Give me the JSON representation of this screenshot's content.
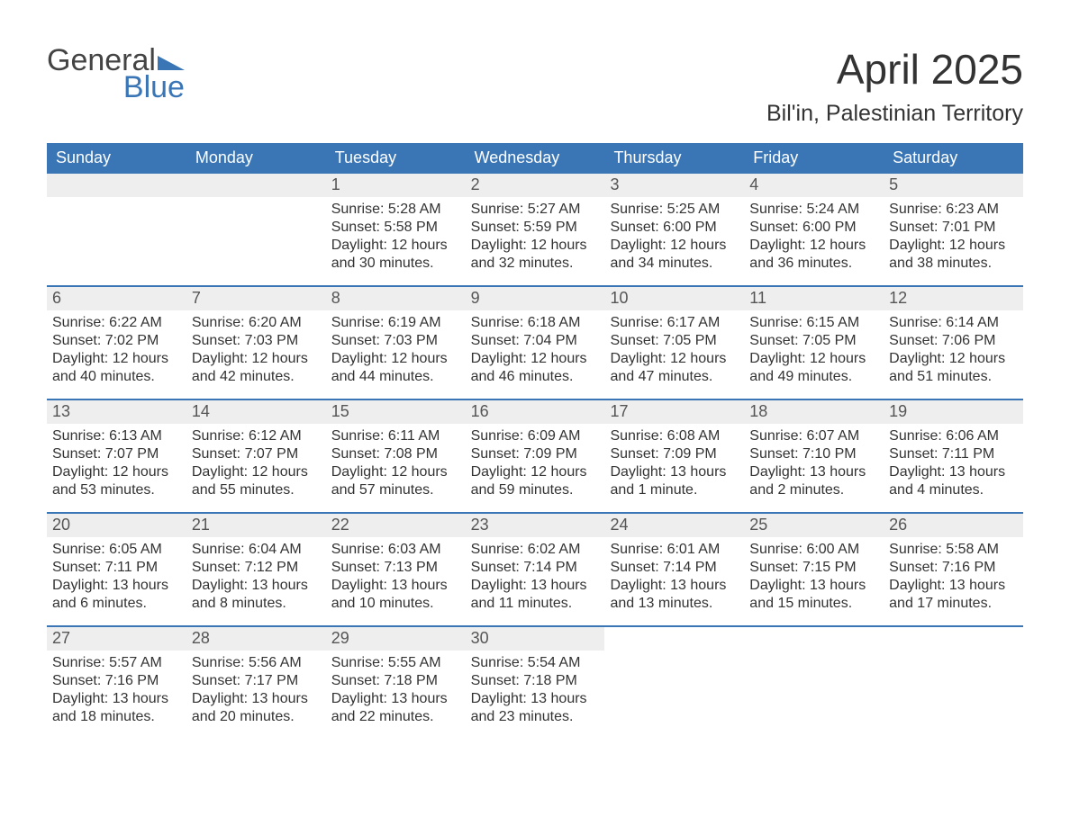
{
  "logo": {
    "word1": "General",
    "word2": "Blue",
    "brand_color": "#3a76b6"
  },
  "title": "April 2025",
  "subtitle": "Bil'in, Palestinian Territory",
  "colors": {
    "header_bg": "#3a76b6",
    "header_text": "#ffffff",
    "daynum_bg": "#eeeeee",
    "daynum_text": "#555555",
    "body_text": "#333333",
    "week_border": "#3a76b6",
    "page_bg": "#ffffff"
  },
  "day_headers": [
    "Sunday",
    "Monday",
    "Tuesday",
    "Wednesday",
    "Thursday",
    "Friday",
    "Saturday"
  ],
  "labels": {
    "sunrise": "Sunrise:",
    "sunset": "Sunset:",
    "daylight": "Daylight:"
  },
  "weeks": [
    [
      {
        "blank": true
      },
      {
        "blank": true
      },
      {
        "n": "1",
        "sunrise": "5:28 AM",
        "sunset": "5:58 PM",
        "daylight": "12 hours and 30 minutes."
      },
      {
        "n": "2",
        "sunrise": "5:27 AM",
        "sunset": "5:59 PM",
        "daylight": "12 hours and 32 minutes."
      },
      {
        "n": "3",
        "sunrise": "5:25 AM",
        "sunset": "6:00 PM",
        "daylight": "12 hours and 34 minutes."
      },
      {
        "n": "4",
        "sunrise": "5:24 AM",
        "sunset": "6:00 PM",
        "daylight": "12 hours and 36 minutes."
      },
      {
        "n": "5",
        "sunrise": "6:23 AM",
        "sunset": "7:01 PM",
        "daylight": "12 hours and 38 minutes."
      }
    ],
    [
      {
        "n": "6",
        "sunrise": "6:22 AM",
        "sunset": "7:02 PM",
        "daylight": "12 hours and 40 minutes."
      },
      {
        "n": "7",
        "sunrise": "6:20 AM",
        "sunset": "7:03 PM",
        "daylight": "12 hours and 42 minutes."
      },
      {
        "n": "8",
        "sunrise": "6:19 AM",
        "sunset": "7:03 PM",
        "daylight": "12 hours and 44 minutes."
      },
      {
        "n": "9",
        "sunrise": "6:18 AM",
        "sunset": "7:04 PM",
        "daylight": "12 hours and 46 minutes."
      },
      {
        "n": "10",
        "sunrise": "6:17 AM",
        "sunset": "7:05 PM",
        "daylight": "12 hours and 47 minutes."
      },
      {
        "n": "11",
        "sunrise": "6:15 AM",
        "sunset": "7:05 PM",
        "daylight": "12 hours and 49 minutes."
      },
      {
        "n": "12",
        "sunrise": "6:14 AM",
        "sunset": "7:06 PM",
        "daylight": "12 hours and 51 minutes."
      }
    ],
    [
      {
        "n": "13",
        "sunrise": "6:13 AM",
        "sunset": "7:07 PM",
        "daylight": "12 hours and 53 minutes."
      },
      {
        "n": "14",
        "sunrise": "6:12 AM",
        "sunset": "7:07 PM",
        "daylight": "12 hours and 55 minutes."
      },
      {
        "n": "15",
        "sunrise": "6:11 AM",
        "sunset": "7:08 PM",
        "daylight": "12 hours and 57 minutes."
      },
      {
        "n": "16",
        "sunrise": "6:09 AM",
        "sunset": "7:09 PM",
        "daylight": "12 hours and 59 minutes."
      },
      {
        "n": "17",
        "sunrise": "6:08 AM",
        "sunset": "7:09 PM",
        "daylight": "13 hours and 1 minute."
      },
      {
        "n": "18",
        "sunrise": "6:07 AM",
        "sunset": "7:10 PM",
        "daylight": "13 hours and 2 minutes."
      },
      {
        "n": "19",
        "sunrise": "6:06 AM",
        "sunset": "7:11 PM",
        "daylight": "13 hours and 4 minutes."
      }
    ],
    [
      {
        "n": "20",
        "sunrise": "6:05 AM",
        "sunset": "7:11 PM",
        "daylight": "13 hours and 6 minutes."
      },
      {
        "n": "21",
        "sunrise": "6:04 AM",
        "sunset": "7:12 PM",
        "daylight": "13 hours and 8 minutes."
      },
      {
        "n": "22",
        "sunrise": "6:03 AM",
        "sunset": "7:13 PM",
        "daylight": "13 hours and 10 minutes."
      },
      {
        "n": "23",
        "sunrise": "6:02 AM",
        "sunset": "7:14 PM",
        "daylight": "13 hours and 11 minutes."
      },
      {
        "n": "24",
        "sunrise": "6:01 AM",
        "sunset": "7:14 PM",
        "daylight": "13 hours and 13 minutes."
      },
      {
        "n": "25",
        "sunrise": "6:00 AM",
        "sunset": "7:15 PM",
        "daylight": "13 hours and 15 minutes."
      },
      {
        "n": "26",
        "sunrise": "5:58 AM",
        "sunset": "7:16 PM",
        "daylight": "13 hours and 17 minutes."
      }
    ],
    [
      {
        "n": "27",
        "sunrise": "5:57 AM",
        "sunset": "7:16 PM",
        "daylight": "13 hours and 18 minutes."
      },
      {
        "n": "28",
        "sunrise": "5:56 AM",
        "sunset": "7:17 PM",
        "daylight": "13 hours and 20 minutes."
      },
      {
        "n": "29",
        "sunrise": "5:55 AM",
        "sunset": "7:18 PM",
        "daylight": "13 hours and 22 minutes."
      },
      {
        "n": "30",
        "sunrise": "5:54 AM",
        "sunset": "7:18 PM",
        "daylight": "13 hours and 23 minutes."
      },
      {
        "blank": true
      },
      {
        "blank": true
      },
      {
        "blank": true
      }
    ]
  ]
}
